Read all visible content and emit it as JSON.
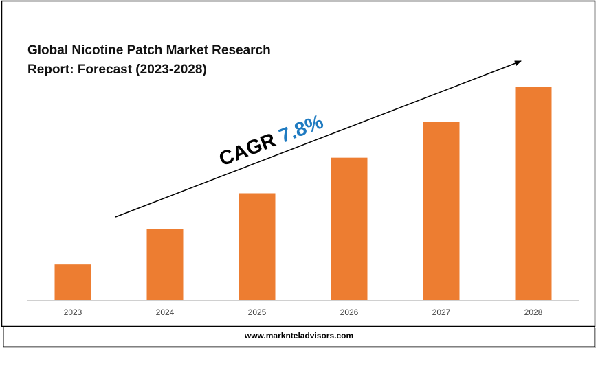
{
  "chart_data": {
    "type": "bar",
    "title_lines": [
      "Global Nicotine Patch Market Research",
      "Report: Forecast (2023-2028)"
    ],
    "categories": [
      "2023",
      "2024",
      "2025",
      "2026",
      "2027",
      "2028"
    ],
    "values": [
      1,
      2,
      3,
      4,
      5,
      6
    ],
    "color": "#ed7d31",
    "annotation": {
      "label": "CAGR",
      "value": "7.8%",
      "value_color": "#1f7bc1"
    },
    "footer": "www.marknteladvisors.com"
  }
}
